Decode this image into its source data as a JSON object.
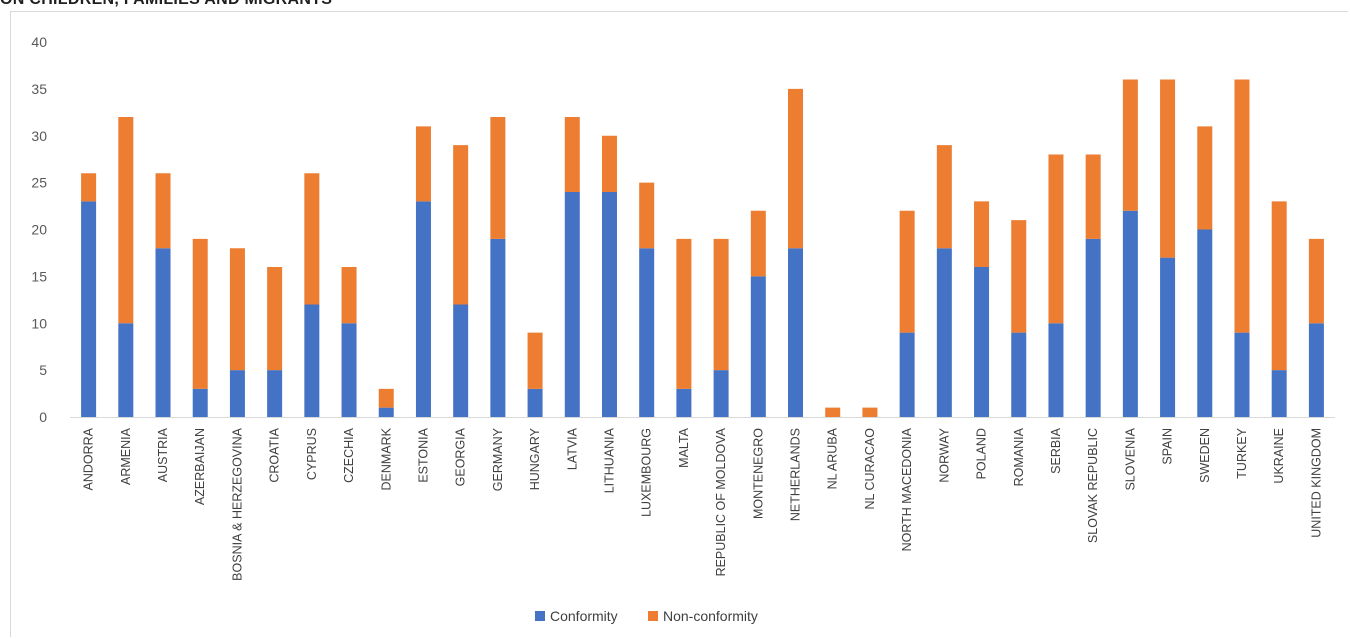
{
  "header": {
    "title_fragment": "ON CHILDREN, FAMILIES AND MIGRANTS"
  },
  "chart_data": {
    "type": "bar",
    "stacked": true,
    "title": "",
    "xlabel": "",
    "ylabel": "",
    "ylim": [
      0,
      40
    ],
    "yticks": [
      0,
      5,
      10,
      15,
      20,
      25,
      30,
      35,
      40
    ],
    "grid": false,
    "legend_position": "bottom-center",
    "categories": [
      "ANDORRA",
      "ARMENIA",
      "AUSTRIA",
      "AZERBAIJAN",
      "BOSNIA & HERZEGOVINA",
      "CROATIA",
      "CYPRUS",
      "CZECHIA",
      "DENMARK",
      "ESTONIA",
      "GEORGIA",
      "GERMANY",
      "HUNGARY",
      "LATVIA",
      "LITHUANIA",
      "LUXEMBOURG",
      "MALTA",
      "REPUBLIC OF MOLDOVA",
      "MONTENEGRO",
      "NETHERLANDS",
      "NL ARUBA",
      "NL CURACAO",
      "NORTH MACEDONIA",
      "NORWAY",
      "POLAND",
      "ROMANIA",
      "SERBIA",
      "SLOVAK REPUBLIC",
      "SLOVENIA",
      "SPAIN",
      "SWEDEN",
      "TURKEY",
      "UKRAINE",
      "UNITED KINGDOM"
    ],
    "series": [
      {
        "name": "Conformity",
        "color": "#4472c4",
        "values": [
          23,
          10,
          18,
          3,
          5,
          5,
          12,
          10,
          1,
          23,
          12,
          19,
          3,
          24,
          24,
          18,
          3,
          5,
          15,
          18,
          0,
          0,
          9,
          18,
          16,
          9,
          10,
          19,
          22,
          17,
          20,
          9,
          5,
          10
        ]
      },
      {
        "name": "Non-conformity",
        "color": "#ed7d31",
        "values": [
          3,
          22,
          8,
          16,
          13,
          11,
          14,
          6,
          2,
          8,
          17,
          13,
          6,
          8,
          6,
          7,
          16,
          14,
          7,
          17,
          1,
          1,
          13,
          11,
          7,
          12,
          18,
          9,
          14,
          19,
          11,
          27,
          18,
          9
        ]
      }
    ]
  }
}
